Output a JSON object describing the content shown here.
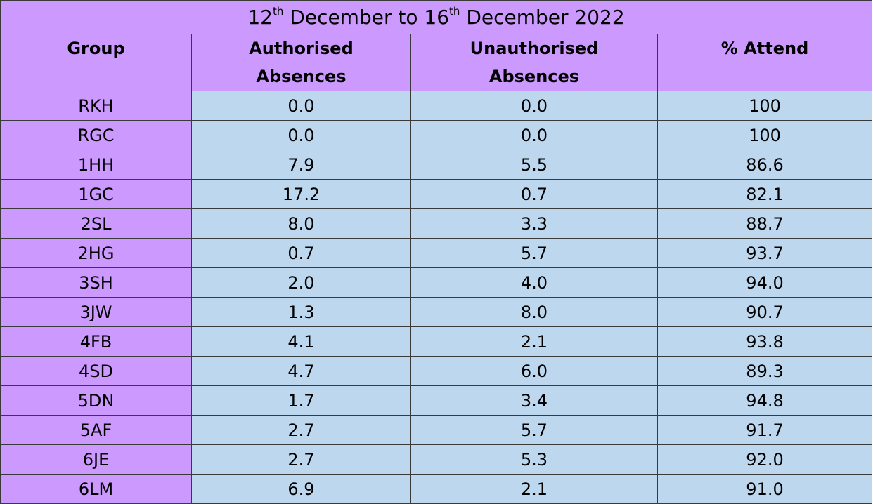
{
  "title": {
    "day_start": "12",
    "suffix_start": "th",
    "month_start": " December to ",
    "day_end": "16",
    "suffix_end": "th",
    "month_year_end": " December 2022"
  },
  "columns": {
    "group": "Group",
    "authorised_line1": "Authorised",
    "authorised_line2": "Absences",
    "unauthorised_line1": "Unauthorised",
    "unauthorised_line2": "Absences",
    "attend": "% Attend"
  },
  "colors": {
    "header_bg": "#cc99ff",
    "value_bg": "#bdd7ee",
    "border": "#3a3a3a"
  },
  "rows": [
    {
      "group": "RKH",
      "authorised": "0.0",
      "unauthorised": "0.0",
      "attend": "100"
    },
    {
      "group": "RGC",
      "authorised": "0.0",
      "unauthorised": "0.0",
      "attend": "100"
    },
    {
      "group": "1HH",
      "authorised": "7.9",
      "unauthorised": "5.5",
      "attend": "86.6"
    },
    {
      "group": "1GC",
      "authorised": "17.2",
      "unauthorised": "0.7",
      "attend": "82.1"
    },
    {
      "group": "2SL",
      "authorised": "8.0",
      "unauthorised": "3.3",
      "attend": "88.7"
    },
    {
      "group": "2HG",
      "authorised": "0.7",
      "unauthorised": "5.7",
      "attend": "93.7"
    },
    {
      "group": "3SH",
      "authorised": "2.0",
      "unauthorised": "4.0",
      "attend": "94.0"
    },
    {
      "group": "3JW",
      "authorised": "1.3",
      "unauthorised": "8.0",
      "attend": "90.7"
    },
    {
      "group": "4FB",
      "authorised": "4.1",
      "unauthorised": "2.1",
      "attend": "93.8"
    },
    {
      "group": "4SD",
      "authorised": "4.7",
      "unauthorised": "6.0",
      "attend": "89.3"
    },
    {
      "group": "5DN",
      "authorised": "1.7",
      "unauthorised": "3.4",
      "attend": "94.8"
    },
    {
      "group": "5AF",
      "authorised": "2.7",
      "unauthorised": "5.7",
      "attend": "91.7"
    },
    {
      "group": "6JE",
      "authorised": "2.7",
      "unauthorised": "5.3",
      "attend": "92.0"
    },
    {
      "group": "6LM",
      "authorised": "6.9",
      "unauthorised": "2.1",
      "attend": "91.0"
    }
  ]
}
